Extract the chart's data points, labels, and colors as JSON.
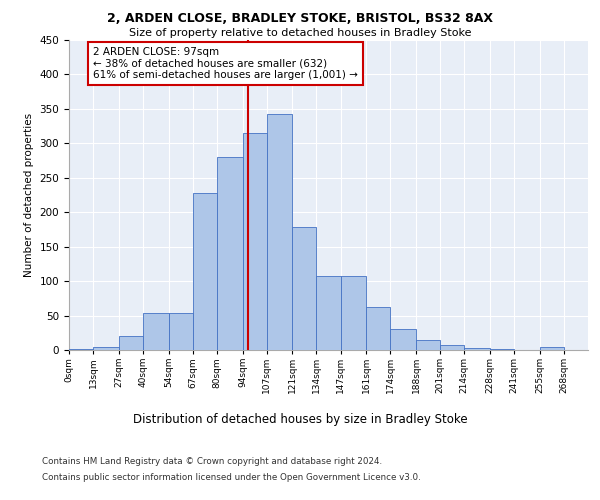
{
  "title_line1": "2, ARDEN CLOSE, BRADLEY STOKE, BRISTOL, BS32 8AX",
  "title_line2": "Size of property relative to detached houses in Bradley Stoke",
  "xlabel": "Distribution of detached houses by size in Bradley Stoke",
  "ylabel": "Number of detached properties",
  "bin_labels": [
    "0sqm",
    "13sqm",
    "27sqm",
    "40sqm",
    "54sqm",
    "67sqm",
    "80sqm",
    "94sqm",
    "107sqm",
    "121sqm",
    "134sqm",
    "147sqm",
    "161sqm",
    "174sqm",
    "188sqm",
    "201sqm",
    "214sqm",
    "228sqm",
    "241sqm",
    "255sqm",
    "268sqm"
  ],
  "bin_edges": [
    0,
    13,
    27,
    40,
    54,
    67,
    80,
    94,
    107,
    121,
    134,
    147,
    161,
    174,
    188,
    201,
    214,
    228,
    241,
    255,
    268,
    281
  ],
  "bar_heights": [
    2,
    5,
    20,
    53,
    53,
    228,
    280,
    315,
    343,
    178,
    107,
    107,
    62,
    30,
    15,
    7,
    3,
    1,
    0,
    4,
    0
  ],
  "bar_color": "#aec6e8",
  "bar_edge_color": "#4472c4",
  "vline_x": 97,
  "vline_color": "#cc0000",
  "annotation_text": "2 ARDEN CLOSE: 97sqm\n← 38% of detached houses are smaller (632)\n61% of semi-detached houses are larger (1,001) →",
  "annotation_box_color": "#cc0000",
  "ylim": [
    0,
    450
  ],
  "yticks": [
    0,
    50,
    100,
    150,
    200,
    250,
    300,
    350,
    400,
    450
  ],
  "bg_color": "#e8eef7",
  "footer_line1": "Contains HM Land Registry data © Crown copyright and database right 2024.",
  "footer_line2": "Contains public sector information licensed under the Open Government Licence v3.0."
}
